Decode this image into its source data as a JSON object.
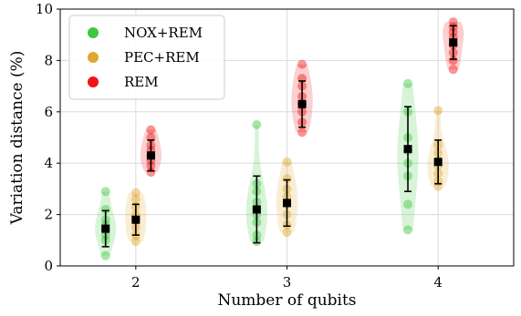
{
  "chart_data": {
    "type": "scatter",
    "subtype": "violin-with-points-and-errorbars",
    "xlabel": "Number of qubits",
    "ylabel": "Variation distance (%)",
    "categories": [
      "2",
      "3",
      "4"
    ],
    "ylim": [
      0,
      10
    ],
    "yticks": [
      "0",
      "2",
      "4",
      "6",
      "8",
      "10"
    ],
    "grid": true,
    "legend_position": "top-left",
    "series": [
      {
        "name": "NOX+REM",
        "color": "#3ec83e",
        "offset": -0.2,
        "points": [
          [
            0.4,
            1.0,
            1.2,
            1.4,
            1.6,
            1.8,
            2.2,
            2.9
          ],
          [
            0.95,
            1.2,
            1.7,
            2.0,
            2.2,
            2.5,
            2.9,
            3.2,
            5.5
          ],
          [
            1.4,
            2.4,
            3.5,
            4.0,
            4.5,
            5.0,
            6.0,
            7.1
          ]
        ],
        "mean": [
          1.45,
          2.2,
          4.55
        ],
        "err": [
          0.7,
          1.3,
          1.65
        ]
      },
      {
        "name": "PEC+REM",
        "color": "#e0a82e",
        "offset": 0.0,
        "points": [
          [
            0.95,
            1.2,
            1.5,
            1.8,
            2.0,
            2.3,
            2.6,
            2.85
          ],
          [
            1.3,
            1.6,
            2.0,
            2.4,
            2.7,
            3.0,
            3.4,
            4.05
          ],
          [
            3.1,
            3.3,
            3.6,
            3.9,
            4.1,
            4.4,
            4.7,
            6.05
          ]
        ],
        "mean": [
          1.8,
          2.45,
          4.05
        ],
        "err": [
          0.6,
          0.9,
          0.85
        ]
      },
      {
        "name": "REM",
        "color": "#f01414",
        "offset": 0.1,
        "points": [
          [
            3.65,
            3.9,
            4.1,
            4.3,
            4.5,
            4.7,
            5.0,
            5.3
          ],
          [
            5.2,
            5.6,
            6.0,
            6.3,
            6.6,
            7.0,
            7.3,
            7.85
          ],
          [
            7.65,
            8.0,
            8.3,
            8.6,
            8.9,
            9.1,
            9.3,
            9.5
          ]
        ],
        "mean": [
          4.3,
          6.3,
          8.7
        ],
        "err": [
          0.6,
          0.9,
          0.65
        ]
      }
    ]
  }
}
